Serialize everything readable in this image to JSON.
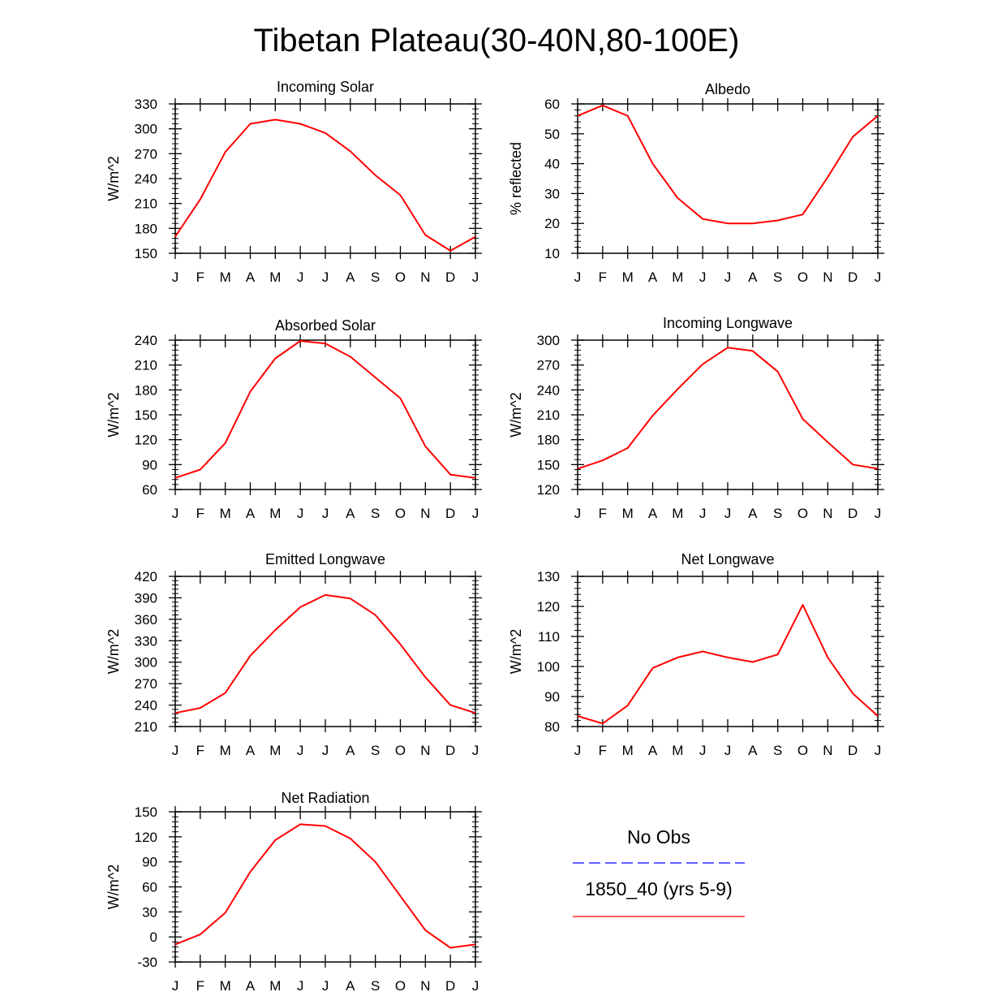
{
  "title": "Tibetan Plateau(30-40N,80-100E)",
  "chart_data": [
    {
      "type": "line",
      "title": "Incoming Solar",
      "xlabel": "",
      "ylabel": "W/m^2",
      "categories": [
        "J",
        "F",
        "M",
        "A",
        "M",
        "J",
        "J",
        "A",
        "S",
        "O",
        "N",
        "D",
        "J"
      ],
      "ylim": [
        150,
        330
      ],
      "yticks": [
        "150",
        "180",
        "210",
        "240",
        "270",
        "300",
        "330"
      ],
      "series": [
        {
          "name": "1850_40 (yrs 5-9)",
          "color": "#ff0000",
          "values": [
            170,
            215,
            272,
            306,
            311,
            306,
            295,
            273,
            244,
            220,
            172,
            153,
            170
          ]
        }
      ]
    },
    {
      "type": "line",
      "title": "Albedo",
      "xlabel": "",
      "ylabel": "% reflected",
      "categories": [
        "J",
        "F",
        "M",
        "A",
        "M",
        "J",
        "J",
        "A",
        "S",
        "O",
        "N",
        "D",
        "J"
      ],
      "ylim": [
        10,
        60
      ],
      "yticks": [
        "10",
        "20",
        "30",
        "40",
        "50",
        "60"
      ],
      "series": [
        {
          "name": "1850_40 (yrs 5-9)",
          "color": "#ff0000",
          "values": [
            56,
            59.5,
            56,
            40,
            28.5,
            21.5,
            20,
            20,
            21,
            23,
            35.5,
            49,
            56
          ]
        }
      ]
    },
    {
      "type": "line",
      "title": "Absorbed Solar",
      "xlabel": "",
      "ylabel": "W/m^2",
      "categories": [
        "J",
        "F",
        "M",
        "A",
        "M",
        "J",
        "J",
        "A",
        "S",
        "O",
        "N",
        "D",
        "J"
      ],
      "ylim": [
        60,
        240
      ],
      "yticks": [
        "60",
        "90",
        "120",
        "150",
        "180",
        "210",
        "240"
      ],
      "series": [
        {
          "name": "1850_40 (yrs 5-9)",
          "color": "#ff0000",
          "values": [
            74,
            84,
            116,
            178,
            218,
            239,
            236,
            220,
            195,
            170,
            112,
            78,
            74
          ]
        }
      ]
    },
    {
      "type": "line",
      "title": "Incoming Longwave",
      "xlabel": "",
      "ylabel": "W/m^2",
      "categories": [
        "J",
        "F",
        "M",
        "A",
        "M",
        "J",
        "J",
        "A",
        "S",
        "O",
        "N",
        "D",
        "J"
      ],
      "ylim": [
        120,
        300
      ],
      "yticks": [
        "120",
        "150",
        "180",
        "210",
        "240",
        "270",
        "300"
      ],
      "series": [
        {
          "name": "1850_40 (yrs 5-9)",
          "color": "#ff0000",
          "values": [
            145,
            155,
            170,
            209,
            241,
            271,
            291,
            287,
            262,
            205,
            177,
            150,
            145
          ]
        }
      ]
    },
    {
      "type": "line",
      "title": "Emitted Longwave",
      "xlabel": "",
      "ylabel": "W/m^2",
      "categories": [
        "J",
        "F",
        "M",
        "A",
        "M",
        "J",
        "J",
        "A",
        "S",
        "O",
        "N",
        "D",
        "J"
      ],
      "ylim": [
        210,
        420
      ],
      "yticks": [
        "210",
        "240",
        "270",
        "300",
        "330",
        "360",
        "390",
        "420"
      ],
      "series": [
        {
          "name": "1850_40 (yrs 5-9)",
          "color": "#ff0000",
          "values": [
            229,
            236,
            257,
            309,
            345,
            377,
            394,
            389,
            366,
            325,
            279,
            240,
            229
          ]
        }
      ]
    },
    {
      "type": "line",
      "title": "Net Longwave",
      "xlabel": "",
      "ylabel": "W/m^2",
      "categories": [
        "J",
        "F",
        "M",
        "A",
        "M",
        "J",
        "J",
        "A",
        "S",
        "O",
        "N",
        "D",
        "J"
      ],
      "ylim": [
        80,
        130
      ],
      "yticks": [
        "80",
        "90",
        "100",
        "110",
        "120",
        "130"
      ],
      "series": [
        {
          "name": "1850_40 (yrs 5-9)",
          "color": "#ff0000",
          "values": [
            83.5,
            81,
            87,
            99.5,
            103,
            105,
            103,
            101.5,
            104,
            120.5,
            103,
            91,
            83.5
          ]
        }
      ]
    },
    {
      "type": "line",
      "title": "Net Radiation",
      "xlabel": "",
      "ylabel": "W/m^2",
      "categories": [
        "J",
        "F",
        "M",
        "A",
        "M",
        "J",
        "J",
        "A",
        "S",
        "O",
        "N",
        "D",
        "J"
      ],
      "ylim": [
        -30,
        150
      ],
      "yticks": [
        "-30",
        "0",
        "30",
        "60",
        "90",
        "120",
        "150"
      ],
      "series": [
        {
          "name": "1850_40 (yrs 5-9)",
          "color": "#ff0000",
          "values": [
            -9,
            3,
            29,
            78,
            116,
            135,
            133,
            118,
            90,
            49,
            8,
            -13,
            -9
          ]
        }
      ]
    }
  ],
  "legend": {
    "entries": [
      {
        "label": "No Obs",
        "color": "#0000ff",
        "style": "dashed"
      },
      {
        "label": "1850_40 (yrs 5-9)",
        "color": "#ff0000",
        "style": "solid"
      }
    ]
  }
}
